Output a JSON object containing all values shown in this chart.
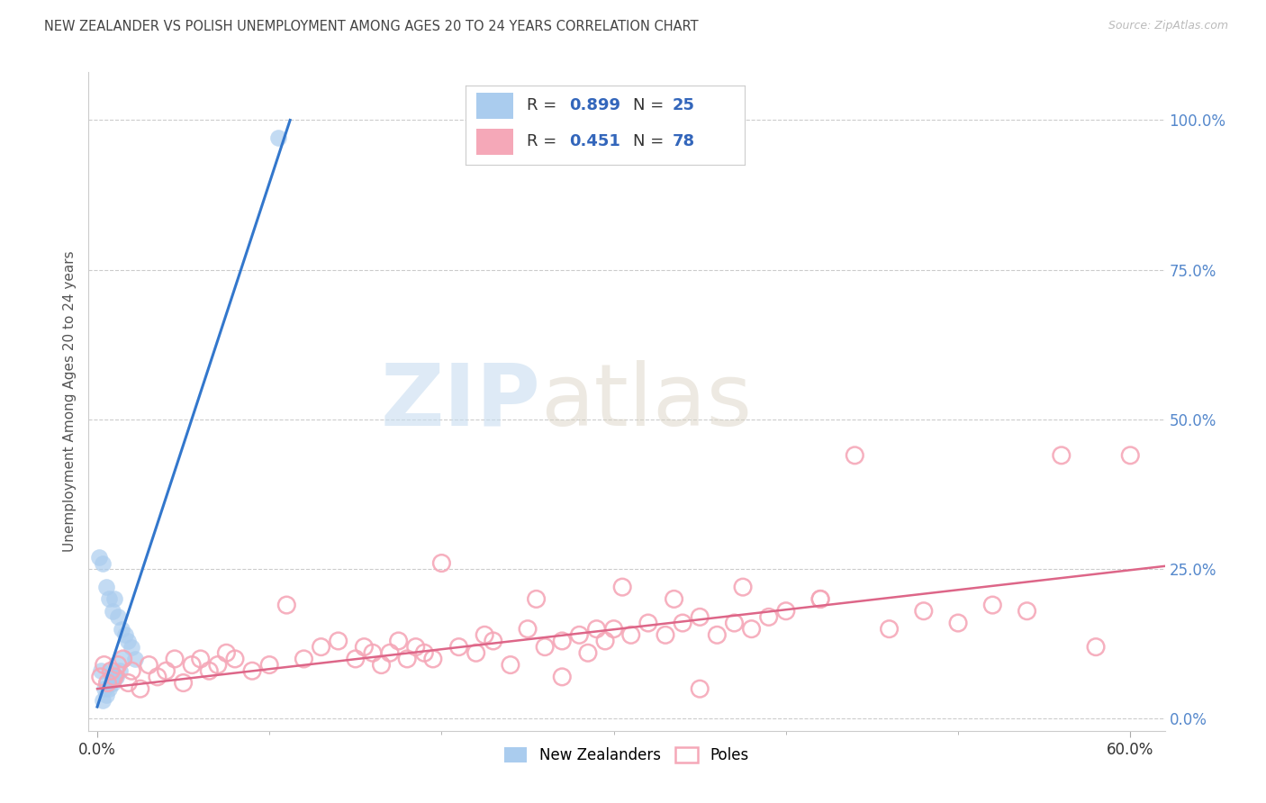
{
  "title": "NEW ZEALANDER VS POLISH UNEMPLOYMENT AMONG AGES 20 TO 24 YEARS CORRELATION CHART",
  "source": "Source: ZipAtlas.com",
  "ylabel": "Unemployment Among Ages 20 to 24 years",
  "xlim": [
    -0.005,
    0.62
  ],
  "ylim": [
    -0.02,
    1.08
  ],
  "xtick_positions": [
    0.0,
    0.6
  ],
  "xticklabels": [
    "0.0%",
    "60.0%"
  ],
  "yticks_right": [
    0.0,
    0.25,
    0.5,
    0.75,
    1.0
  ],
  "yticklabels_right": [
    "0.0%",
    "25.0%",
    "50.0%",
    "75.0%",
    "100.0%"
  ],
  "nz_R": 0.899,
  "nz_N": 25,
  "polish_R": 0.451,
  "polish_N": 78,
  "nz_scatter_color": "#aaccee",
  "polish_scatter_color": "#f5a8b8",
  "nz_line_color": "#3377cc",
  "polish_line_color": "#dd6688",
  "legend_label_nz": "New Zealanders",
  "legend_label_polish": "Poles",
  "legend_text_color": "#3366bb",
  "watermark_zip": "ZIP",
  "watermark_atlas": "atlas",
  "background_color": "#ffffff",
  "grid_color": "#cccccc",
  "title_color": "#444444",
  "right_tick_color": "#5588cc",
  "nz_scatter_x": [
    0.001,
    0.002,
    0.003,
    0.003,
    0.004,
    0.005,
    0.005,
    0.006,
    0.007,
    0.007,
    0.008,
    0.009,
    0.009,
    0.01,
    0.01,
    0.011,
    0.012,
    0.013,
    0.014,
    0.015,
    0.016,
    0.018,
    0.02,
    0.022,
    0.105
  ],
  "nz_scatter_y": [
    0.27,
    0.08,
    0.26,
    0.03,
    0.05,
    0.22,
    0.04,
    0.06,
    0.2,
    0.05,
    0.08,
    0.18,
    0.06,
    0.2,
    0.07,
    0.07,
    0.17,
    0.08,
    0.15,
    0.1,
    0.14,
    0.13,
    0.12,
    0.1,
    0.97
  ],
  "polish_scatter_x": [
    0.002,
    0.004,
    0.006,
    0.008,
    0.01,
    0.012,
    0.015,
    0.018,
    0.02,
    0.025,
    0.03,
    0.035,
    0.04,
    0.045,
    0.05,
    0.055,
    0.06,
    0.065,
    0.07,
    0.075,
    0.08,
    0.09,
    0.1,
    0.11,
    0.12,
    0.13,
    0.14,
    0.15,
    0.155,
    0.16,
    0.165,
    0.17,
    0.175,
    0.18,
    0.185,
    0.19,
    0.195,
    0.2,
    0.21,
    0.22,
    0.225,
    0.23,
    0.24,
    0.25,
    0.255,
    0.26,
    0.27,
    0.28,
    0.285,
    0.29,
    0.295,
    0.3,
    0.305,
    0.31,
    0.32,
    0.33,
    0.335,
    0.34,
    0.35,
    0.36,
    0.37,
    0.375,
    0.38,
    0.39,
    0.4,
    0.42,
    0.44,
    0.46,
    0.48,
    0.5,
    0.52,
    0.54,
    0.27,
    0.35,
    0.42,
    0.56,
    0.58,
    0.6
  ],
  "polish_scatter_y": [
    0.07,
    0.09,
    0.06,
    0.08,
    0.07,
    0.09,
    0.1,
    0.06,
    0.08,
    0.05,
    0.09,
    0.07,
    0.08,
    0.1,
    0.06,
    0.09,
    0.1,
    0.08,
    0.09,
    0.11,
    0.1,
    0.08,
    0.09,
    0.19,
    0.1,
    0.12,
    0.13,
    0.1,
    0.12,
    0.11,
    0.09,
    0.11,
    0.13,
    0.1,
    0.12,
    0.11,
    0.1,
    0.26,
    0.12,
    0.11,
    0.14,
    0.13,
    0.09,
    0.15,
    0.2,
    0.12,
    0.13,
    0.14,
    0.11,
    0.15,
    0.13,
    0.15,
    0.22,
    0.14,
    0.16,
    0.14,
    0.2,
    0.16,
    0.17,
    0.14,
    0.16,
    0.22,
    0.15,
    0.17,
    0.18,
    0.2,
    0.44,
    0.15,
    0.18,
    0.16,
    0.19,
    0.18,
    0.07,
    0.05,
    0.2,
    0.44,
    0.12,
    0.44
  ],
  "nz_line_x": [
    0.0,
    0.112
  ],
  "nz_line_y": [
    0.02,
    1.0
  ],
  "polish_line_x": [
    0.0,
    0.62
  ],
  "polish_line_y": [
    0.05,
    0.255
  ]
}
